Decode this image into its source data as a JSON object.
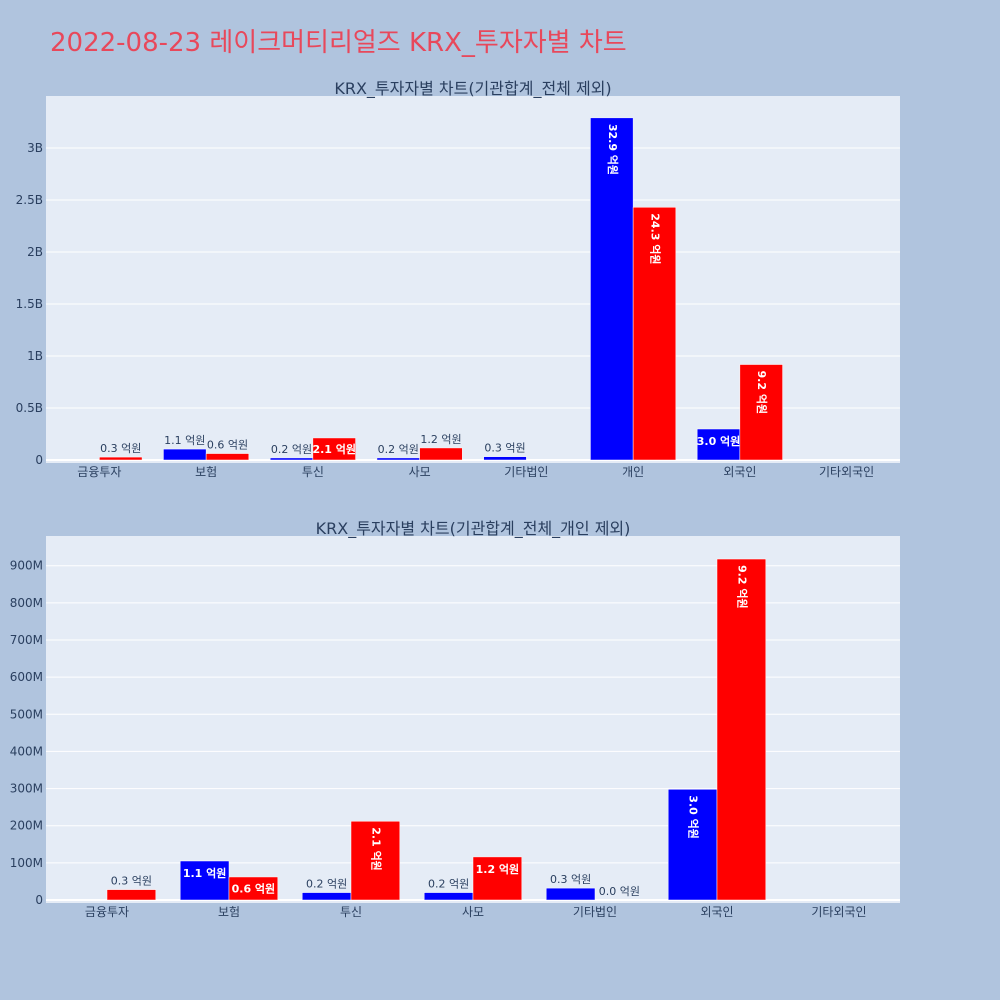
{
  "title": "2022-08-23 레이크머티리얼즈 KRX_투자자별 차트",
  "colors": {
    "buy": "#0000ff",
    "sell": "#ff0000",
    "plot_bg": "#e5ecf6",
    "page_bg": "#b0c4de",
    "title": "#e8485b"
  },
  "chart_data": [
    {
      "type": "bar",
      "title": "KRX_투자자별 차트(기관합계_전체 제외)",
      "categories": [
        "금융투자",
        "보험",
        "투신",
        "사모",
        "기타법인",
        "개인",
        "외국인",
        "기타외국인"
      ],
      "ylim": [
        0,
        3500000000
      ],
      "yticks": [
        0,
        500000000,
        1000000000,
        1500000000,
        2000000000,
        2500000000,
        3000000000
      ],
      "ytick_labels": [
        "0",
        "0.5B",
        "1B",
        "1.5B",
        "2B",
        "2.5B",
        "3B"
      ],
      "grid": true,
      "series": [
        {
          "color": "#0000ff",
          "values": [
            0,
            105000000,
            20000000,
            20000000,
            32000000,
            3290000000,
            298000000,
            0
          ],
          "labels": [
            "",
            "1.1 억원",
            "0.2 억원",
            "0.2 억원",
            "0.3 억원",
            "32.9 억원",
            "3.0 억원",
            ""
          ]
        },
        {
          "color": "#ff0000",
          "values": [
            28000000,
            62000000,
            212000000,
            116000000,
            0,
            2430000000,
            918000000,
            0
          ],
          "labels": [
            "0.3 억원",
            "0.6 억원",
            "2.1 억원",
            "1.2 억원",
            "",
            "24.3 억원",
            "9.2 억원",
            ""
          ]
        }
      ]
    },
    {
      "type": "bar",
      "title": "KRX_투자자별 차트(기관합계_전체_개인 제외)",
      "categories": [
        "금융투자",
        "보험",
        "투신",
        "사모",
        "기타법인",
        "외국인",
        "기타외국인"
      ],
      "ylim": [
        0,
        980000000
      ],
      "yticks": [
        0,
        100000000,
        200000000,
        300000000,
        400000000,
        500000000,
        600000000,
        700000000,
        800000000,
        900000000
      ],
      "ytick_labels": [
        "0",
        "100M",
        "200M",
        "300M",
        "400M",
        "500M",
        "600M",
        "700M",
        "800M",
        "900M"
      ],
      "grid": true,
      "series": [
        {
          "color": "#0000ff",
          "values": [
            0,
            105000000,
            20000000,
            20000000,
            32000000,
            298000000,
            0
          ],
          "labels": [
            "",
            "1.1 억원",
            "0.2 억원",
            "0.2 억원",
            "0.3 억원",
            "3.0 억원",
            ""
          ]
        },
        {
          "color": "#ff0000",
          "values": [
            28000000,
            62000000,
            212000000,
            116000000,
            0,
            918000000,
            0
          ],
          "labels": [
            "0.3 억원",
            "0.6 억원",
            "2.1 억원",
            "1.2 억원",
            "0.0 억원",
            "9.2 억원",
            ""
          ]
        }
      ]
    }
  ]
}
